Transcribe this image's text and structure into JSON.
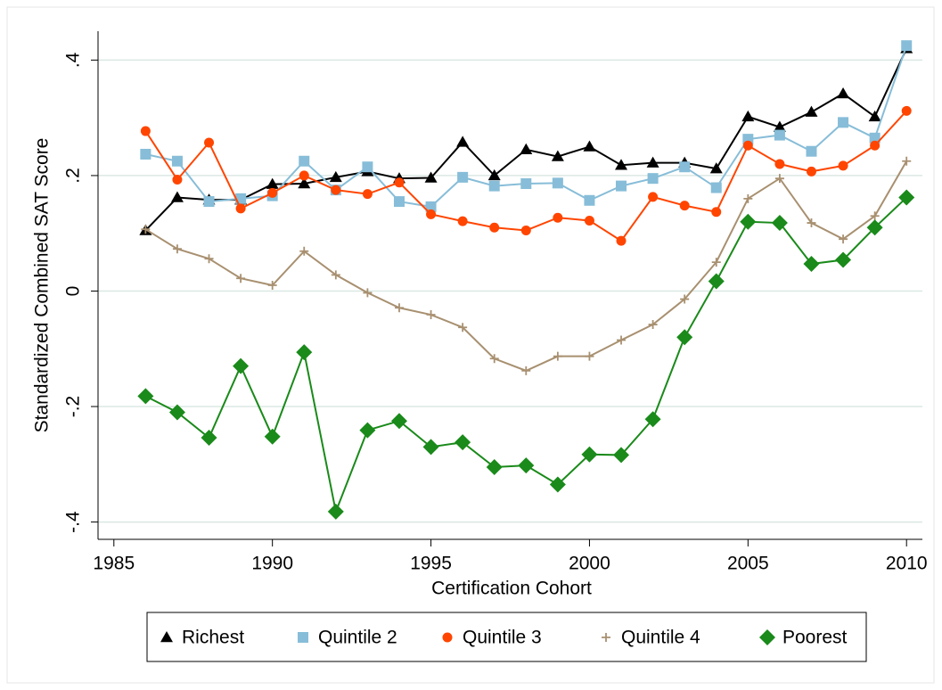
{
  "chart_data": {
    "type": "line",
    "x_label": "Certification Cohort",
    "y_label": "Standardized Combined SAT Score",
    "x": [
      1986,
      1987,
      1988,
      1989,
      1990,
      1991,
      1992,
      1993,
      1994,
      1995,
      1996,
      1997,
      1998,
      1999,
      2000,
      2001,
      2002,
      2003,
      2004,
      2005,
      2006,
      2007,
      2008,
      2009,
      2010
    ],
    "series": [
      {
        "name": "Richest",
        "color": "#000000",
        "marker": "triangle",
        "values": [
          0.105,
          0.162,
          0.158,
          0.158,
          0.185,
          0.186,
          0.197,
          0.207,
          0.195,
          0.196,
          0.258,
          0.2,
          0.245,
          0.233,
          0.25,
          0.218,
          0.222,
          0.222,
          0.212,
          0.302,
          0.284,
          0.31,
          0.342,
          0.302,
          0.42
        ]
      },
      {
        "name": "Quintile 2",
        "color": "#87bdd8",
        "marker": "square",
        "values": [
          0.237,
          0.225,
          0.155,
          0.16,
          0.165,
          0.225,
          0.175,
          0.215,
          0.155,
          0.146,
          0.197,
          0.182,
          0.186,
          0.187,
          0.157,
          0.182,
          0.195,
          0.215,
          0.179,
          0.263,
          0.27,
          0.242,
          0.292,
          0.265,
          0.425
        ]
      },
      {
        "name": "Quintile 3",
        "color": "#ff4500",
        "marker": "circle",
        "values": [
          0.277,
          0.193,
          0.257,
          0.143,
          0.17,
          0.2,
          0.175,
          0.168,
          0.188,
          0.133,
          0.121,
          0.11,
          0.105,
          0.127,
          0.122,
          0.087,
          0.163,
          0.148,
          0.137,
          0.252,
          0.22,
          0.207,
          0.217,
          0.252,
          0.312
        ]
      },
      {
        "name": "Quintile 4",
        "color": "#a89070",
        "marker": "plus",
        "values": [
          0.107,
          0.073,
          0.056,
          0.022,
          0.01,
          0.069,
          0.028,
          -0.003,
          -0.029,
          -0.041,
          -0.063,
          -0.117,
          -0.138,
          -0.113,
          -0.113,
          -0.085,
          -0.058,
          -0.014,
          0.05,
          0.16,
          0.195,
          0.118,
          0.09,
          0.13,
          0.225
        ]
      },
      {
        "name": "Poorest",
        "color": "#1a8a1a",
        "marker": "diamond",
        "values": [
          -0.182,
          -0.21,
          -0.254,
          -0.13,
          -0.252,
          -0.106,
          -0.382,
          -0.241,
          -0.225,
          -0.27,
          -0.262,
          -0.305,
          -0.302,
          -0.335,
          -0.283,
          -0.284,
          -0.222,
          -0.08,
          0.017,
          0.12,
          0.118,
          0.047,
          0.054,
          0.11,
          0.162
        ]
      }
    ],
    "xlim": [
      1984.5,
      2010.5
    ],
    "xticks": [
      1985,
      1990,
      1995,
      2000,
      2005,
      2010
    ],
    "ylim": [
      -0.43,
      0.45
    ],
    "yticks": [
      {
        "value": -0.4,
        "label": "-.4"
      },
      {
        "value": -0.2,
        "label": "-.2"
      },
      0,
      {
        "value": 0.2,
        "label": ".2"
      },
      {
        "value": 0.4,
        "label": ".4"
      }
    ],
    "grid": true,
    "legend": "bottom"
  }
}
